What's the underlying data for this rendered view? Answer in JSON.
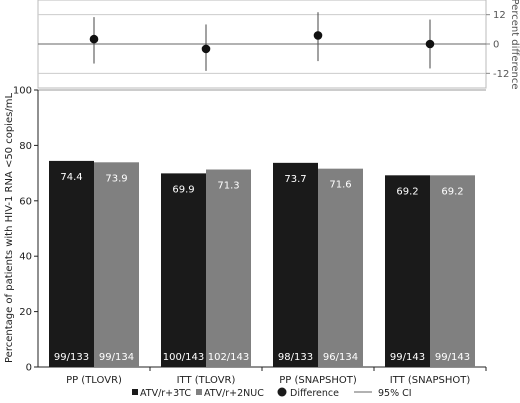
{
  "chart_data": [
    {
      "type": "scatter",
      "panel": "difference",
      "ylabel": "Percent difference",
      "yticks": [
        12,
        0,
        -12
      ],
      "ylim": [
        -18,
        18
      ],
      "grid": true,
      "series": [
        {
          "name": "Difference",
          "values": [
            2.0,
            -2.0,
            3.5,
            0.0
          ],
          "ci_lower": [
            -8.0,
            -11.0,
            -7.0,
            -10.0
          ],
          "ci_upper": [
            11.0,
            8.0,
            13.0,
            10.0
          ]
        }
      ]
    },
    {
      "type": "bar",
      "panel": "response",
      "ylabel": "Percentage of patients with HIV-1 RNA <50 copies/mL",
      "ylim": [
        0,
        100
      ],
      "yticks": [
        0,
        20,
        40,
        60,
        80,
        100
      ],
      "categories": [
        "PP (TLOVR)",
        "ITT (TLOVR)",
        "PP (SNAPSHOT)",
        "ITT (SNAPSHOT)"
      ],
      "series": [
        {
          "name": "ATV/r+3TC",
          "color": "#1a1a1a",
          "values": [
            74.4,
            69.9,
            73.7,
            69.2
          ],
          "value_labels": [
            "74.4",
            "69.9",
            "73.7",
            "69.2"
          ],
          "counts": [
            "99/133",
            "100/143",
            "98/133",
            "99/143"
          ]
        },
        {
          "name": "ATV/r+2NUC",
          "color": "#808080",
          "values": [
            73.9,
            71.3,
            71.6,
            69.2
          ],
          "value_labels": [
            "73.9",
            "71.3",
            "71.6",
            "69.2"
          ],
          "counts": [
            "99/134",
            "102/143",
            "96/134",
            "99/143"
          ]
        }
      ]
    }
  ],
  "legend": {
    "placement": "bottom",
    "items": [
      {
        "label": "ATV/r+3TC",
        "marker": "square",
        "color": "#1a1a1a"
      },
      {
        "label": "ATV/r+2NUC",
        "marker": "square",
        "color": "#808080"
      },
      {
        "label": "Difference",
        "marker": "circle",
        "color": "#1a1a1a"
      },
      {
        "label": "95% CI",
        "marker": "line",
        "color": "#666666"
      }
    ]
  }
}
